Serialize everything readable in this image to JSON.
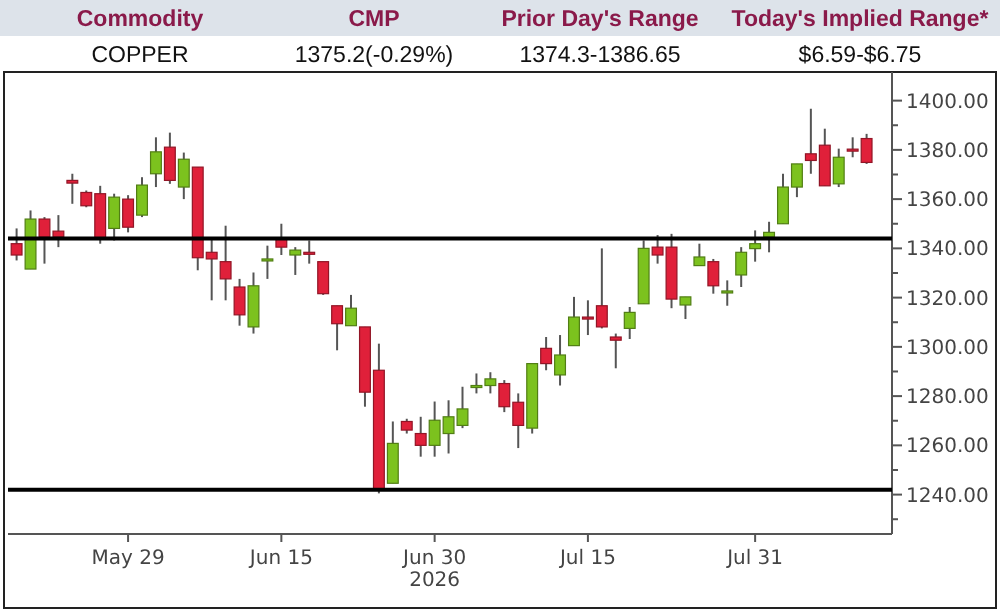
{
  "chart_data": {
    "type": "candlestick",
    "annotations": [
      "Commodity",
      "CMP",
      "Prior Day's Range",
      "Today's Implied Range*",
      "COPPER",
      "1375.2(-0.29%)",
      "1374.3-1386.65",
      "$6.59-$6.75"
    ],
    "categories": [
      null,
      null,
      null,
      null,
      null,
      null,
      null,
      null,
      "May 29",
      null,
      null,
      null,
      null,
      null,
      null,
      null,
      null,
      null,
      null,
      "Jun 15",
      null,
      null,
      null,
      null,
      null,
      null,
      null,
      null,
      null,
      null,
      "Jun 30\n2026",
      null,
      null,
      null,
      null,
      null,
      null,
      null,
      null,
      null,
      null,
      "Jul 15",
      null,
      null,
      null,
      null,
      null,
      null,
      null,
      null,
      null,
      null,
      null,
      "Jul 31",
      null,
      null,
      null,
      null,
      null,
      null,
      null,
      null
    ],
    "ohlc": [
      [
        1341.9,
        1348.1,
        1335.1,
        1337.3
      ],
      [
        1331.6,
        1355.4,
        1331.6,
        1351.9
      ],
      [
        1351.9,
        1352.7,
        1333.8,
        1344.6
      ],
      [
        1347.0,
        1353.5,
        1340.5,
        1344.6
      ],
      [
        1367.6,
        1370.3,
        1358.1,
        1366.5
      ],
      [
        1362.7,
        1363.5,
        1356.7,
        1357.3
      ],
      [
        1362.2,
        1365.4,
        1341.9,
        1343.8
      ],
      [
        1348.1,
        1362.2,
        1343.2,
        1360.8
      ],
      [
        1360.0,
        1361.6,
        1346.5,
        1348.6
      ],
      [
        1353.5,
        1368.9,
        1352.7,
        1365.7
      ],
      [
        1370.3,
        1385.1,
        1364.9,
        1379.2
      ],
      [
        1381.1,
        1387.0,
        1366.2,
        1367.6
      ],
      [
        1364.9,
        1378.9,
        1360.0,
        1376.2
      ],
      [
        1373.0,
        1373.0,
        1331.1,
        1336.2
      ],
      [
        1338.4,
        1344.6,
        1318.9,
        1335.7
      ],
      [
        1334.6,
        1349.2,
        1318.9,
        1327.6
      ],
      [
        1324.3,
        1327.6,
        1308.6,
        1313.0
      ],
      [
        1308.1,
        1330.2,
        1305.4,
        1324.8
      ],
      [
        1335.7,
        1341.1,
        1327.6,
        1335.7
      ],
      [
        1344.0,
        1350.0,
        1337.3,
        1340.5
      ],
      [
        1337.3,
        1340.5,
        1329.2,
        1339.3
      ],
      [
        1338.4,
        1343.2,
        1333.8,
        1337.8
      ],
      [
        1334.6,
        1334.6,
        1321.1,
        1321.6
      ],
      [
        1316.7,
        1316.7,
        1298.6,
        1309.4
      ],
      [
        1308.6,
        1321.1,
        1308.6,
        1315.7
      ],
      [
        1308.1,
        1308.1,
        1275.7,
        1281.6
      ],
      [
        1290.5,
        1301.3,
        1240.5,
        1241.9
      ],
      [
        1244.6,
        1269.7,
        1244.6,
        1260.8
      ],
      [
        1269.7,
        1270.8,
        1264.8,
        1266.2
      ],
      [
        1264.8,
        1271.6,
        1255.4,
        1260.0
      ],
      [
        1260.0,
        1277.8,
        1255.4,
        1270.2
      ],
      [
        1264.8,
        1278.3,
        1256.7,
        1271.6
      ],
      [
        1268.1,
        1283.8,
        1267.0,
        1274.8
      ],
      [
        1284.3,
        1289.2,
        1281.1,
        1284.3
      ],
      [
        1284.3,
        1289.7,
        1281.1,
        1287.0
      ],
      [
        1285.1,
        1286.5,
        1273.5,
        1275.7
      ],
      [
        1277.5,
        1281.1,
        1258.9,
        1268.1
      ],
      [
        1267.0,
        1293.2,
        1264.8,
        1293.2
      ],
      [
        1299.4,
        1304.0,
        1290.5,
        1293.2
      ],
      [
        1288.6,
        1304.8,
        1284.3,
        1296.7
      ],
      [
        1300.5,
        1320.3,
        1300.5,
        1312.1
      ],
      [
        1312.1,
        1318.9,
        1304.8,
        1311.5
      ],
      [
        1316.7,
        1340.0,
        1307.5,
        1308.1
      ],
      [
        1304.0,
        1305.4,
        1291.3,
        1302.7
      ],
      [
        1307.5,
        1316.2,
        1303.2,
        1314.0
      ],
      [
        1317.5,
        1343.2,
        1317.5,
        1340.0
      ],
      [
        1340.5,
        1345.4,
        1333.8,
        1337.3
      ],
      [
        1340.5,
        1345.9,
        1315.7,
        1319.4
      ],
      [
        1317.0,
        1320.3,
        1311.3,
        1320.3
      ],
      [
        1333.0,
        1341.9,
        1333.0,
        1336.5
      ],
      [
        1334.6,
        1335.7,
        1321.6,
        1324.8
      ],
      [
        1322.7,
        1327.0,
        1316.7,
        1322.7
      ],
      [
        1329.2,
        1340.5,
        1324.3,
        1338.4
      ],
      [
        1339.9,
        1347.3,
        1334.6,
        1341.9
      ],
      [
        1344.6,
        1350.8,
        1338.4,
        1346.5
      ],
      [
        1350.0,
        1370.3,
        1350.0,
        1364.9
      ],
      [
        1364.9,
        1374.3,
        1360.8,
        1374.3
      ],
      [
        1378.4,
        1396.7,
        1370.3,
        1375.7
      ],
      [
        1381.9,
        1388.6,
        1365.4,
        1365.4
      ],
      [
        1366.2,
        1380.5,
        1364.9,
        1377.0
      ],
      [
        1380.3,
        1385.1,
        1377.0,
        1379.7
      ],
      [
        1384.6,
        1386.5,
        1374.3,
        1374.9
      ]
    ],
    "colors": [
      "#e0203a",
      "#7cc21e",
      "#e0203a",
      "#e0203a",
      "#e0203a",
      "#e0203a",
      "#e0203a",
      "#7cc21e",
      "#e0203a",
      "#7cc21e",
      "#7cc21e",
      "#e0203a",
      "#7cc21e",
      "#e0203a",
      "#e0203a",
      "#e0203a",
      "#e0203a",
      "#7cc21e",
      "#7cc21e",
      "#e0203a",
      "#7cc21e",
      "#e0203a",
      "#e0203a",
      "#e0203a",
      "#7cc21e",
      "#e0203a",
      "#e0203a",
      "#7cc21e",
      "#e0203a",
      "#e0203a",
      "#7cc21e",
      "#7cc21e",
      "#7cc21e",
      "#7cc21e",
      "#7cc21e",
      "#e0203a",
      "#e0203a",
      "#7cc21e",
      "#e0203a",
      "#7cc21e",
      "#7cc21e",
      "#e0203a",
      "#e0203a",
      "#e0203a",
      "#7cc21e",
      "#7cc21e",
      "#e0203a",
      "#e0203a",
      "#7cc21e",
      "#7cc21e",
      "#e0203a",
      "#7cc21e",
      "#7cc21e",
      "#7cc21e",
      "#7cc21e",
      "#7cc21e",
      "#7cc21e",
      "#e0203a",
      "#e0203a",
      "#7cc21e",
      "#e0203a",
      "#e0203a"
    ],
    "ylim": [
      1224,
      1410
    ],
    "yticks": [
      {
        "value": 1230,
        "label": null
      },
      {
        "value": 1240,
        "label": "1240.00"
      },
      {
        "value": 1250,
        "label": null
      },
      {
        "value": 1260,
        "label": "1260.00"
      },
      {
        "value": 1270,
        "label": null
      },
      {
        "value": 1280,
        "label": "1280.00"
      },
      {
        "value": 1290,
        "label": null
      },
      {
        "value": 1300,
        "label": "1300.00"
      },
      {
        "value": 1310,
        "label": null
      },
      {
        "value": 1320,
        "label": "1320.00"
      },
      {
        "value": 1330,
        "label": null
      },
      {
        "value": 1340,
        "label": "1340.00"
      },
      {
        "value": 1350,
        "label": null
      },
      {
        "value": 1360,
        "label": "1360.00"
      },
      {
        "value": 1370,
        "label": null
      },
      {
        "value": 1380,
        "label": "1380.00"
      },
      {
        "value": 1390,
        "label": null
      },
      {
        "value": 1400,
        "label": "1400.00"
      }
    ],
    "ref_lines": [
      {
        "axis": "y",
        "value": 1344,
        "color": "#000000"
      },
      {
        "axis": "y",
        "value": 1242,
        "color": "#000000"
      }
    ]
  }
}
